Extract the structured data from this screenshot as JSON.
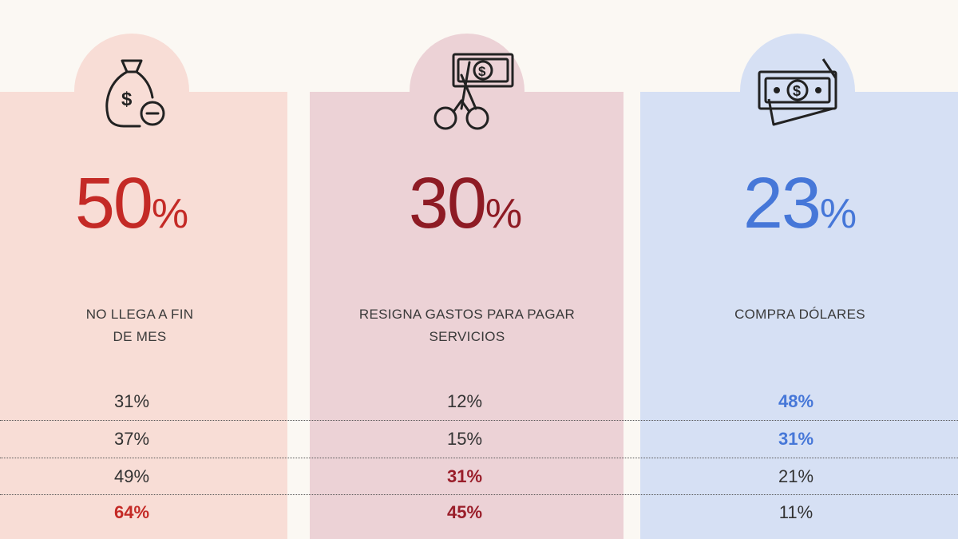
{
  "cards": [
    {
      "icon": "money-bag-minus-icon",
      "big_number": "50",
      "percent_sign": "%",
      "label_line1": "NO LLEGA A FIN",
      "label_line2": "DE MES",
      "rows": [
        "31%",
        "37%",
        "49%",
        "64%"
      ],
      "accent": "#c42a26"
    },
    {
      "icon": "scissors-cutting-banknote-icon",
      "big_number": "30",
      "percent_sign": "%",
      "label_line1": "RESIGNA GASTOS PARA PAGAR",
      "label_line2": "SERVICIOS",
      "rows": [
        "12%",
        "15%",
        "31%",
        "45%"
      ],
      "accent": "#8e1b24"
    },
    {
      "icon": "banknotes-stack-icon",
      "big_number": "23",
      "percent_sign": "%",
      "label_line1": "COMPRA DÓLARES",
      "label_line2": "",
      "rows": [
        "48%",
        "31%",
        "21%",
        "11%"
      ],
      "accent": "#4677d8"
    }
  ]
}
